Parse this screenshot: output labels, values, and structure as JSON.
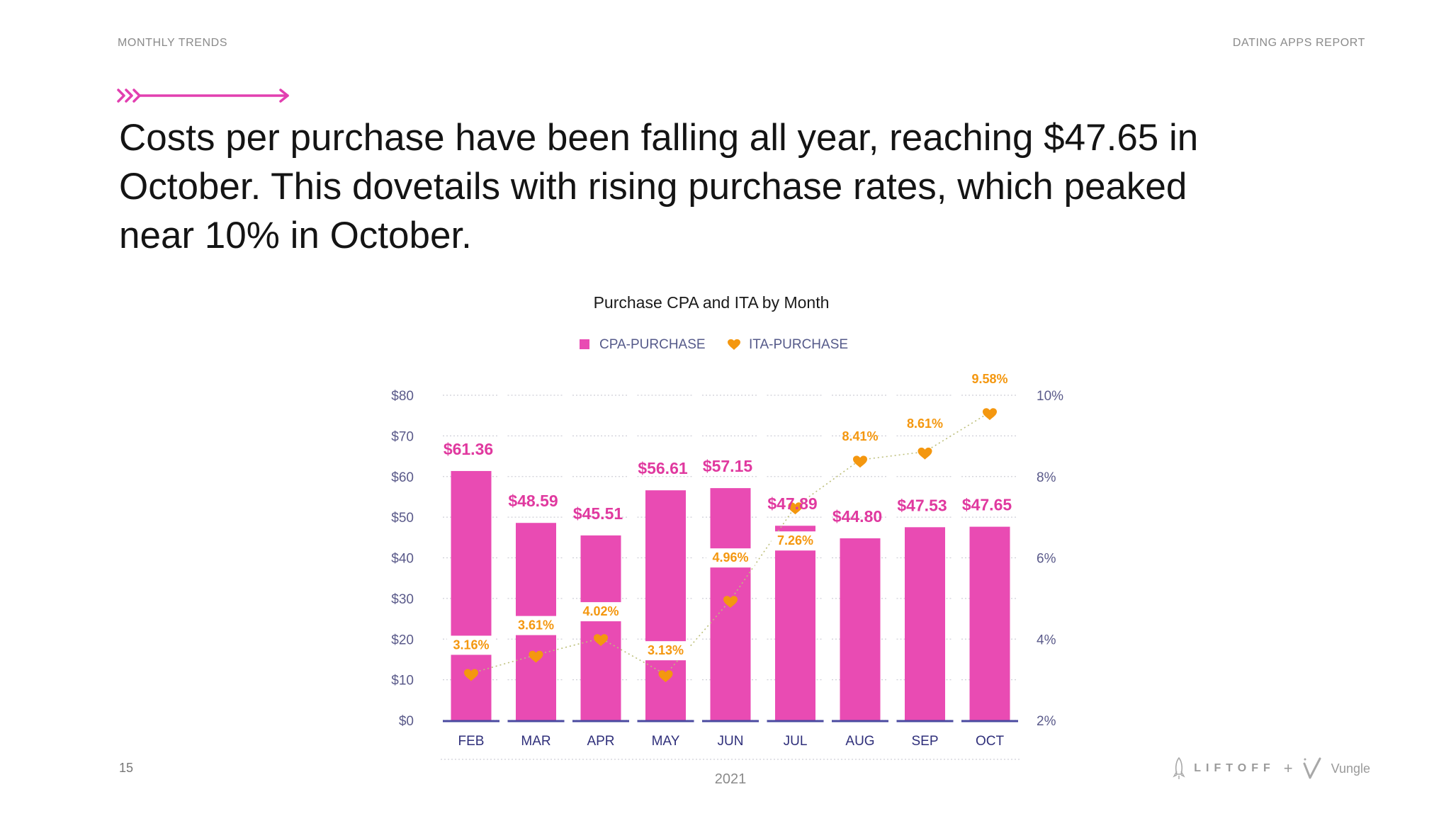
{
  "header": {
    "section": "MONTHLY TRENDS",
    "report": "DATING APPS REPORT"
  },
  "headline": "Costs per purchase have been falling all year, reaching $47.65 in October. This dovetails with rising purchase rates, which peaked near 10% in October.",
  "footer": {
    "page_number": "15",
    "logo_left": "LIFTOFF",
    "logo_plus": "+",
    "logo_right": "Vungle"
  },
  "colors": {
    "bar": "#e94bb3",
    "bar_label": "#e0399f",
    "line": "#f4970f",
    "axis": "#4a4aa0",
    "accent_arrow": "#e23fb0"
  },
  "chart_data": {
    "type": "bar",
    "title": "Purchase CPA and ITA by Month",
    "xlabel": "2021",
    "ylabel": "",
    "categories": [
      "FEB",
      "MAR",
      "APR",
      "MAY",
      "JUN",
      "JUL",
      "AUG",
      "SEP",
      "OCT"
    ],
    "series": [
      {
        "name": "CPA-PURCHASE",
        "type": "bar",
        "axis": "left",
        "values": [
          61.36,
          48.59,
          45.51,
          56.61,
          57.15,
          47.89,
          44.8,
          47.53,
          47.65
        ],
        "labels": [
          "$61.36",
          "$48.59",
          "$45.51",
          "$56.61",
          "$57.15",
          "$47.89",
          "$44.80",
          "$47.53",
          "$47.65"
        ]
      },
      {
        "name": "ITA-PURCHASE",
        "type": "line",
        "axis": "right",
        "values": [
          3.16,
          3.61,
          4.02,
          3.13,
          4.96,
          7.26,
          8.41,
          8.61,
          9.58
        ],
        "labels": [
          "3.16%",
          "3.61%",
          "4.02%",
          "3.13%",
          "4.96%",
          "7.26%",
          "8.41%",
          "8.61%",
          "9.58%"
        ]
      }
    ],
    "y_left": {
      "range": [
        0,
        80
      ],
      "ticks": [
        0,
        10,
        20,
        30,
        40,
        50,
        60,
        70,
        80
      ],
      "tick_labels": [
        "$0",
        "$10",
        "$20",
        "$30",
        "$40",
        "$50",
        "$60",
        "$70",
        "$80"
      ]
    },
    "y_right": {
      "range": [
        2,
        10
      ],
      "ticks": [
        2,
        4,
        6,
        8,
        10
      ],
      "tick_labels": [
        "2%",
        "4%",
        "6%",
        "8%",
        "10%"
      ]
    },
    "grid": true,
    "legend": "top-center"
  }
}
